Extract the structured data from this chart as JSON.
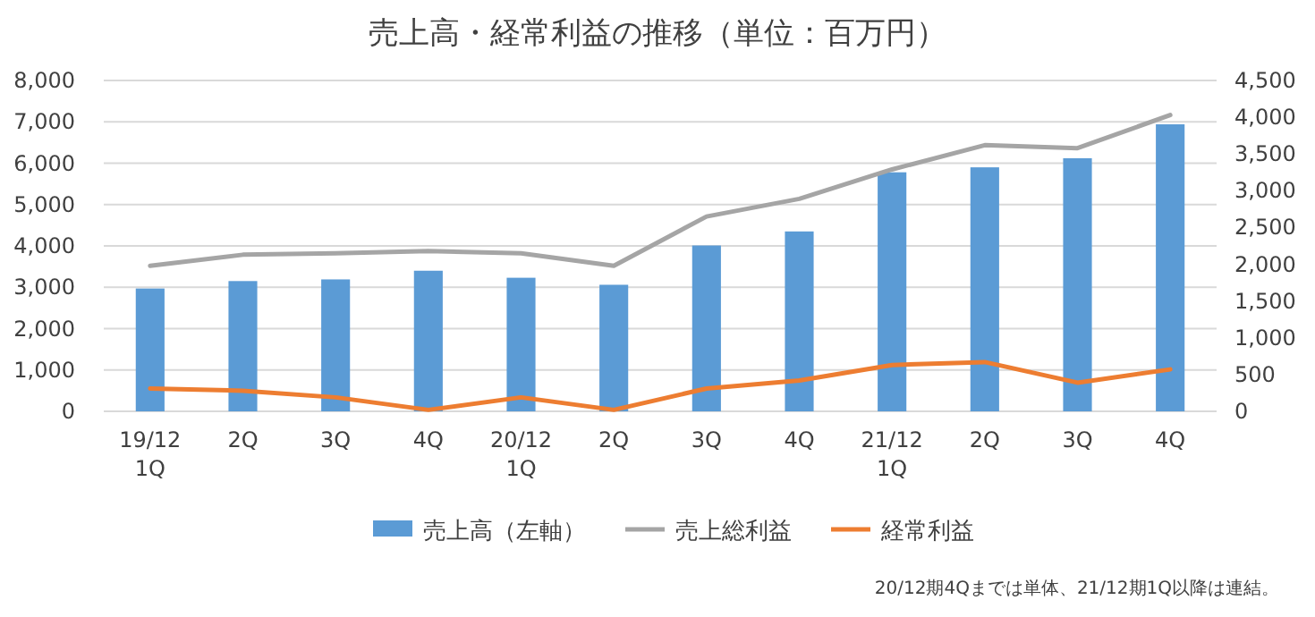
{
  "chart_data": {
    "type": "bar",
    "title": "売上高・経常利益の推移（単位：百万円）",
    "categories": [
      "19/12\n1Q",
      "2Q",
      "3Q",
      "4Q",
      "20/12\n1Q",
      "2Q",
      "3Q",
      "4Q",
      "21/12\n1Q",
      "2Q",
      "3Q",
      "4Q"
    ],
    "series": [
      {
        "name": "売上高（左軸）",
        "color": "#5b9bd5",
        "values": [
          2970,
          3150,
          3190,
          3400,
          3230,
          3060,
          4010,
          4350,
          5780,
          5900,
          6120,
          6940
        ]
      },
      {
        "name": "売上総利益",
        "type": "line",
        "axis": "y2",
        "color": "#a5a5a5",
        "values": [
          1980,
          2130,
          2150,
          2180,
          2150,
          1980,
          2650,
          2890,
          3290,
          3620,
          3580,
          4030
        ]
      },
      {
        "name": "経常利益",
        "type": "line",
        "axis": "y2",
        "color": "#ed7d31",
        "values": [
          310,
          280,
          190,
          20,
          190,
          20,
          310,
          420,
          630,
          670,
          390,
          570
        ]
      }
    ],
    "ylim": [
      0,
      8000
    ],
    "yticks": [
      {
        "value": 0,
        "label": "0"
      },
      {
        "value": 1000,
        "label": "1,000"
      },
      {
        "value": 2000,
        "label": "2,000"
      },
      {
        "value": 3000,
        "label": "3,000"
      },
      {
        "value": 4000,
        "label": "4,000"
      },
      {
        "value": 5000,
        "label": "5,000"
      },
      {
        "value": 6000,
        "label": "6,000"
      },
      {
        "value": 7000,
        "label": "7,000"
      },
      {
        "value": 8000,
        "label": "8,000"
      }
    ],
    "y2lim": [
      0,
      4500
    ],
    "y2ticks": [
      {
        "value": 0,
        "label": "0"
      },
      {
        "value": 500,
        "label": "500"
      },
      {
        "value": 1000,
        "label": "1,000"
      },
      {
        "value": 1500,
        "label": "1,500"
      },
      {
        "value": 2000,
        "label": "2,000"
      },
      {
        "value": 2500,
        "label": "2,500"
      },
      {
        "value": 3000,
        "label": "3,000"
      },
      {
        "value": 3500,
        "label": "3,500"
      },
      {
        "value": 4000,
        "label": "4,000"
      },
      {
        "value": 4500,
        "label": "4,500"
      }
    ],
    "grid": "y",
    "legend": "bottom",
    "annotations": [
      "20/12期4Qまでは単体、21/12期1Q以降は連結。"
    ]
  }
}
